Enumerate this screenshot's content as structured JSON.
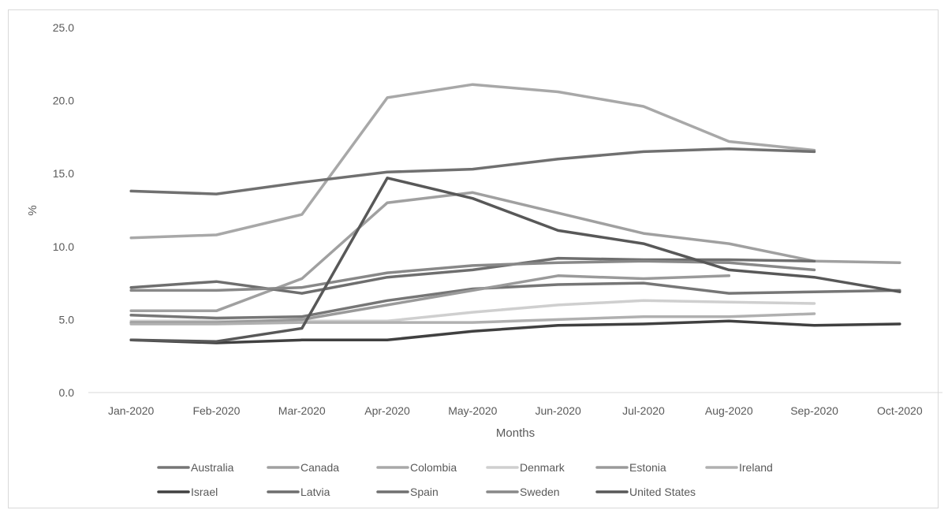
{
  "chart_data": {
    "type": "line",
    "title": "",
    "xlabel": "Months",
    "ylabel": "%",
    "ylim": [
      0,
      25
    ],
    "yticks": [
      "0.0",
      "5.0",
      "10.0",
      "15.0",
      "20.0",
      "25.0"
    ],
    "categories": [
      "Jan-2020",
      "Feb-2020",
      "Mar-2020",
      "Apr-2020",
      "May-2020",
      "Jun-2020",
      "Jul-2020",
      "Aug-2020",
      "Sep-2020",
      "Oct-2020"
    ],
    "grid": false,
    "legend_position": "bottom",
    "series": [
      {
        "name": "Australia",
        "color": "#767676",
        "values": [
          5.3,
          5.1,
          5.2,
          6.3,
          7.1,
          7.4,
          7.5,
          6.8,
          6.9,
          7.0
        ]
      },
      {
        "name": "Canada",
        "color": "#a0a0a0",
        "values": [
          5.6,
          5.6,
          7.8,
          13.0,
          13.7,
          12.3,
          10.9,
          10.2,
          9.0,
          8.9
        ]
      },
      {
        "name": "Colombia",
        "color": "#a8a8a8",
        "values": [
          10.6,
          10.8,
          12.2,
          20.2,
          21.1,
          20.6,
          19.6,
          17.2,
          16.6,
          null
        ]
      },
      {
        "name": "Denmark",
        "color": "#cfcfcf",
        "values": [
          4.9,
          4.9,
          4.9,
          4.9,
          5.5,
          6.0,
          6.3,
          6.2,
          6.1,
          null
        ]
      },
      {
        "name": "Estonia",
        "color": "#9a9a9a",
        "values": [
          4.8,
          4.8,
          5.0,
          6.0,
          7.0,
          8.0,
          7.8,
          8.0,
          null,
          null
        ]
      },
      {
        "name": "Ireland",
        "color": "#b0b0b0",
        "values": [
          4.7,
          4.7,
          4.8,
          4.8,
          4.8,
          5.0,
          5.2,
          5.2,
          5.4,
          null
        ]
      },
      {
        "name": "Israel",
        "color": "#404040",
        "values": [
          3.6,
          3.4,
          3.6,
          3.6,
          4.2,
          4.6,
          4.7,
          4.9,
          4.6,
          4.7
        ]
      },
      {
        "name": "Latvia",
        "color": "#6e6e6e",
        "values": [
          7.2,
          7.6,
          6.8,
          7.9,
          8.4,
          9.2,
          9.1,
          9.1,
          9.0,
          null
        ]
      },
      {
        "name": "Spain",
        "color": "#707070",
        "values": [
          13.8,
          13.6,
          14.4,
          15.1,
          15.3,
          16.0,
          16.5,
          16.7,
          16.5,
          null
        ]
      },
      {
        "name": "Sweden",
        "color": "#888888",
        "values": [
          7.0,
          7.0,
          7.2,
          8.2,
          8.7,
          8.9,
          9.0,
          8.9,
          8.4,
          null
        ]
      },
      {
        "name": "United States",
        "color": "#585858",
        "values": [
          3.6,
          3.5,
          4.4,
          14.7,
          13.3,
          11.1,
          10.2,
          8.4,
          7.9,
          6.9
        ]
      }
    ]
  }
}
